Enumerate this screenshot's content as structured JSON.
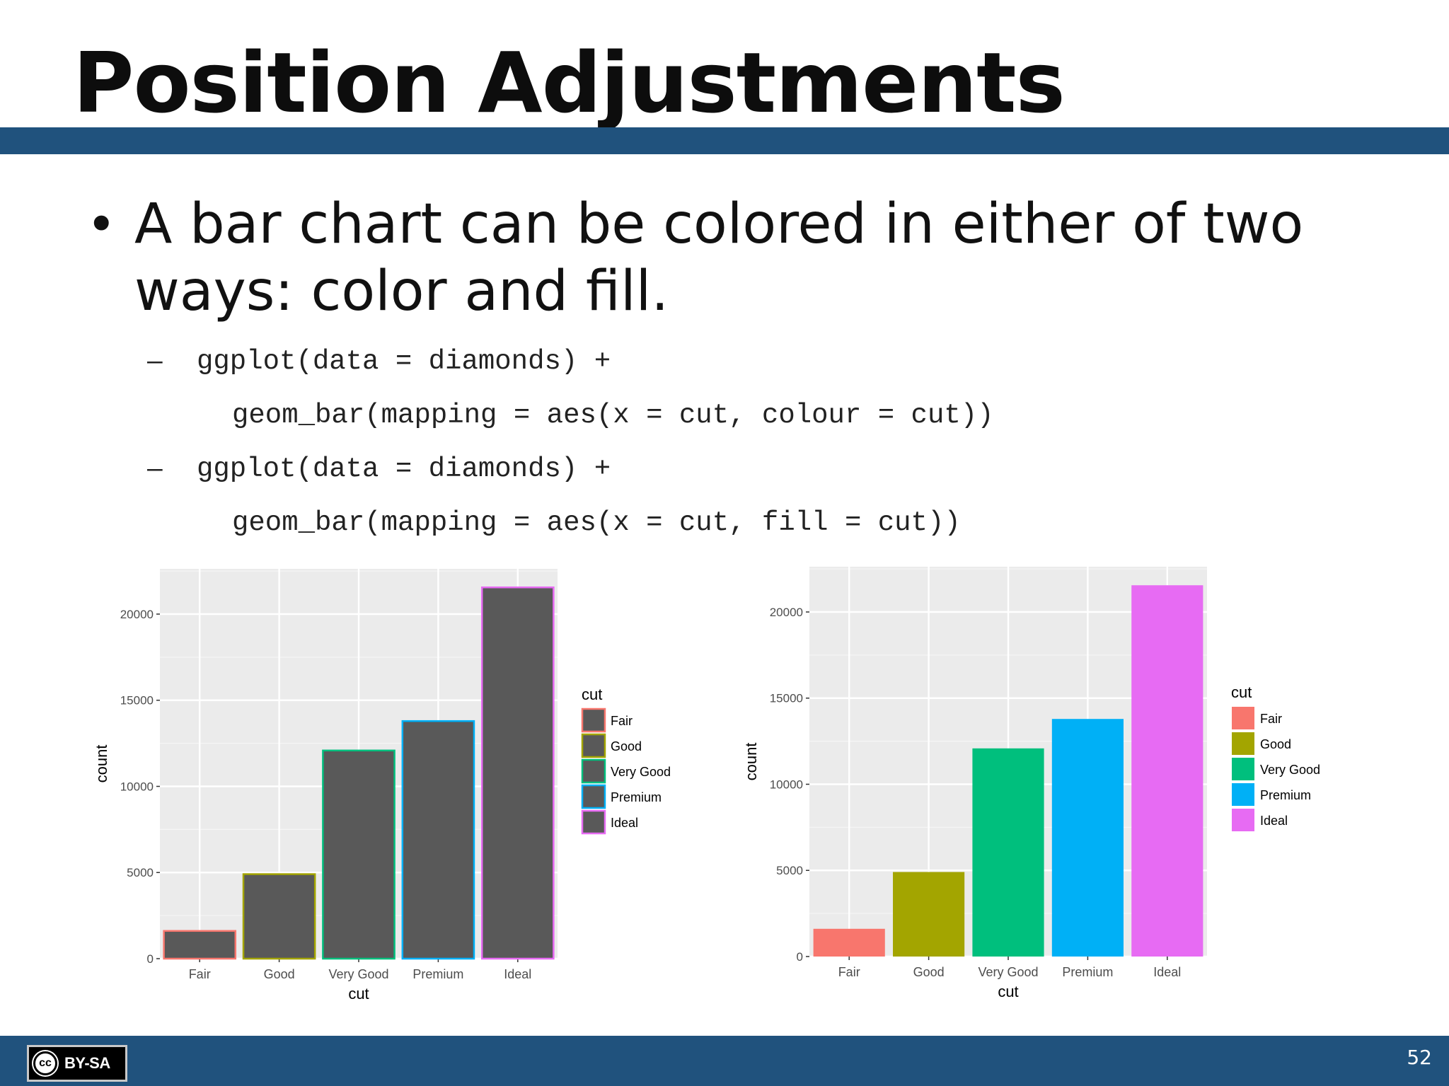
{
  "slide": {
    "title": "Position Adjustments",
    "bullet": "A bar chart can be colored in either of two ways: color and fill.",
    "code_items": [
      {
        "dash": "–",
        "line1": "ggplot(data = diamonds) +",
        "line2": "geom_bar(mapping = aes(x = cut, colour = cut))"
      },
      {
        "dash": "–",
        "line1": "ggplot(data = diamonds) +",
        "line2": "geom_bar(mapping = aes(x = cut, fill = cut))"
      }
    ],
    "license_badge": "BY-SA",
    "license_icon": "cc-icon",
    "cc_mark": "cc",
    "page_number": "52"
  },
  "chart_data": [
    {
      "type": "bar",
      "mapping": "colour",
      "categories": [
        "Fair",
        "Good",
        "Very Good",
        "Premium",
        "Ideal"
      ],
      "values": [
        1610,
        4906,
        12082,
        13791,
        21551
      ],
      "colors": [
        "#F8766D",
        "#A3A500",
        "#00BF7D",
        "#00B0F6",
        "#E76BF3"
      ],
      "bar_fill": "#595959",
      "xlabel": "cut",
      "ylabel": "count",
      "ylim": [
        0,
        22628
      ],
      "yticks": [
        0,
        5000,
        10000,
        15000,
        20000
      ],
      "ytick_labels": [
        "0",
        "5000",
        "10000",
        "15000",
        "20000"
      ],
      "legend": {
        "title": "cut",
        "entries": [
          "Fair",
          "Good",
          "Very Good",
          "Premium",
          "Ideal"
        ],
        "position": "right"
      },
      "grid": true
    },
    {
      "type": "bar",
      "mapping": "fill",
      "categories": [
        "Fair",
        "Good",
        "Very Good",
        "Premium",
        "Ideal"
      ],
      "values": [
        1610,
        4906,
        12082,
        13791,
        21551
      ],
      "colors": [
        "#F8766D",
        "#A3A500",
        "#00BF7D",
        "#00B0F6",
        "#E76BF3"
      ],
      "xlabel": "cut",
      "ylabel": "count",
      "ylim": [
        0,
        22628
      ],
      "yticks": [
        0,
        5000,
        10000,
        15000,
        20000
      ],
      "ytick_labels": [
        "0",
        "5000",
        "10000",
        "15000",
        "20000"
      ],
      "legend": {
        "title": "cut",
        "entries": [
          "Fair",
          "Good",
          "Very Good",
          "Premium",
          "Ideal"
        ],
        "position": "right"
      },
      "grid": true
    }
  ]
}
